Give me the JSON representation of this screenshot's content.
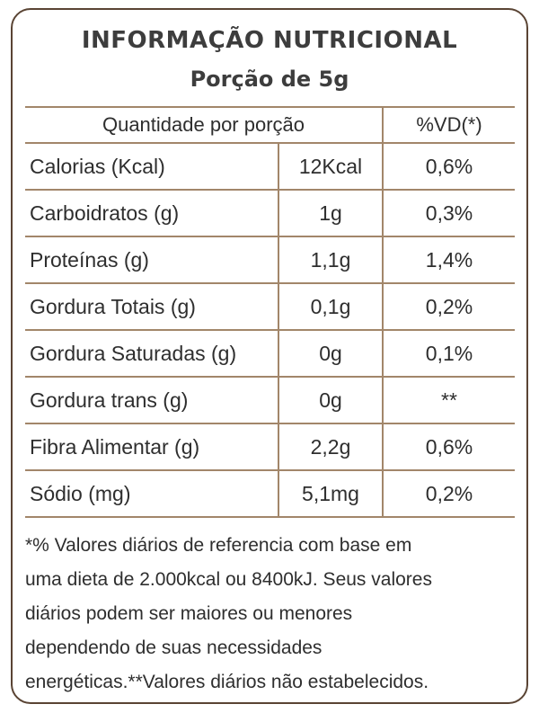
{
  "title": "INFORMAÇÃO NUTRICIONAL",
  "subtitle": "Porção de 5g",
  "table": {
    "header": {
      "quantity_label": "Quantidade por porção",
      "vd_label": "%VD(*)"
    },
    "rows": [
      {
        "name": "Calorias (Kcal)",
        "quantity": "12Kcal",
        "vd": "0,6%"
      },
      {
        "name": "Carboidratos (g)",
        "quantity": "1g",
        "vd": "0,3%"
      },
      {
        "name": "Proteínas (g)",
        "quantity": "1,1g",
        "vd": "1,4%"
      },
      {
        "name": "Gordura Totais (g)",
        "quantity": "0,1g",
        "vd": "0,2%"
      },
      {
        "name": "Gordura Saturadas (g)",
        "quantity": "0g",
        "vd": "0,1%"
      },
      {
        "name": "Gordura trans (g)",
        "quantity": "0g",
        "vd": "**"
      },
      {
        "name": "Fibra Alimentar (g)",
        "quantity": "2,2g",
        "vd": "0,6%"
      },
      {
        "name": "Sódio (mg)",
        "quantity": "5,1mg",
        "vd": "0,2%"
      }
    ]
  },
  "footnote": {
    "lines": [
      "*% Valores diários de referencia com base em",
      "uma dieta de 2.000kcal ou 8400kJ. Seus valores",
      "diários podem ser maiores ou menores",
      "dependendo de suas necessidades",
      "energéticas.**Valores diários não estabelecidos."
    ]
  },
  "colors": {
    "border": "#5a4434",
    "rule": "#a2866a",
    "text": "#2e2e2e"
  }
}
